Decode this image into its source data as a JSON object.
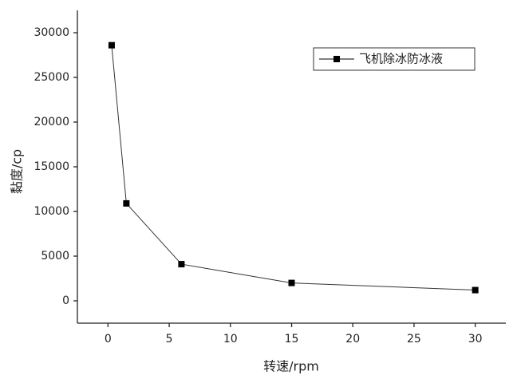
{
  "chart_data": {
    "type": "line",
    "x": [
      0.3,
      1.5,
      6,
      15,
      30
    ],
    "series": [
      {
        "name": "飞机除冰防冰液",
        "color": "#000000",
        "values": [
          28600,
          10900,
          4100,
          2000,
          1200
        ]
      }
    ],
    "xlabel": "转速/rpm",
    "ylabel": "黏度/cp",
    "xlim": [
      -2.5,
      32.5
    ],
    "xticks": [
      0,
      5,
      10,
      15,
      20,
      25,
      30
    ],
    "ylim": [
      -2500,
      32500
    ],
    "yticks": [
      0,
      5000,
      10000,
      15000,
      20000,
      25000,
      30000
    ],
    "legend": "upper right",
    "grid": false
  }
}
